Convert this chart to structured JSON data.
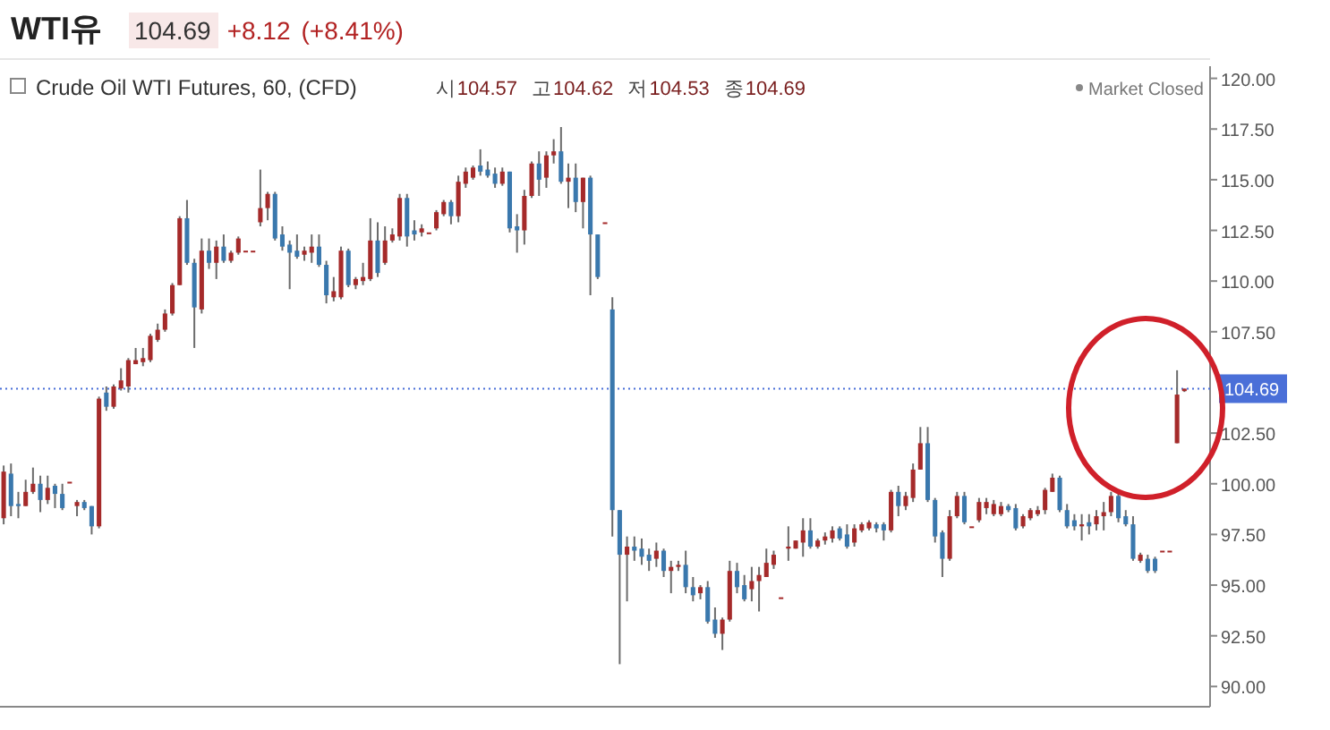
{
  "chart_data": {
    "type": "candlestick",
    "title": "WTI유",
    "subtitle": "Crude Oil WTI Futures, 60, (CFD)",
    "annotations": [
      "104.69",
      "+8.12",
      "(+8.41%)",
      "시",
      "104.57",
      "고",
      "104.62",
      "저",
      "104.53",
      "종",
      "104.69",
      "Market Closed"
    ],
    "ylim": [
      89,
      120.6
    ],
    "yticks": [
      {
        "value": 90,
        "label": "90.00"
      },
      {
        "value": 92.5,
        "label": "92.50"
      },
      {
        "value": 95,
        "label": "95.00"
      },
      {
        "value": 97.5,
        "label": "97.50"
      },
      {
        "value": 100,
        "label": "100.00"
      },
      {
        "value": 102.5,
        "label": "102.50"
      },
      {
        "value": 107.5,
        "label": "107.50"
      },
      {
        "value": 110,
        "label": "110.00"
      },
      {
        "value": 112.5,
        "label": "112.50"
      },
      {
        "value": 115,
        "label": "115.00"
      },
      {
        "value": 117.5,
        "label": "117.50"
      },
      {
        "value": 120,
        "label": "120.00"
      }
    ],
    "tick_labels": "y",
    "ref_lines": [
      {
        "axis": "y",
        "value": 104.69,
        "label": "104.69",
        "color": "#4a6fd8",
        "line_style": "dotted"
      }
    ],
    "ohlc": [
      [
        98.3,
        100.9,
        98.0,
        100.6
      ],
      [
        100.5,
        101.0,
        98.4,
        98.9
      ],
      [
        99.0,
        99.6,
        98.3,
        98.9
      ],
      [
        98.9,
        100.2,
        98.9,
        99.6
      ],
      [
        99.6,
        100.8,
        99.5,
        100.0
      ],
      [
        100.0,
        100.4,
        98.6,
        99.2
      ],
      [
        99.2,
        100.4,
        99.0,
        99.8
      ],
      [
        99.9,
        100.0,
        98.8,
        99.5
      ],
      [
        99.5,
        100.0,
        98.7,
        98.8
      ],
      [
        100.1,
        100.1,
        100.1,
        100.1
      ],
      [
        98.9,
        99.2,
        98.4,
        99.1
      ],
      [
        99.1,
        99.2,
        98.7,
        98.8
      ],
      [
        98.9,
        98.9,
        97.5,
        97.9
      ],
      [
        97.9,
        104.3,
        97.8,
        104.2
      ],
      [
        104.5,
        104.8,
        103.6,
        103.8
      ],
      [
        103.8,
        104.9,
        103.7,
        104.8
      ],
      [
        104.7,
        105.7,
        104.6,
        105.1
      ],
      [
        104.8,
        106.2,
        104.5,
        106.1
      ],
      [
        105.9,
        106.7,
        105.9,
        106.1
      ],
      [
        106.0,
        106.7,
        105.8,
        106.2
      ],
      [
        106.1,
        107.4,
        106.0,
        107.3
      ],
      [
        107.1,
        107.9,
        107.0,
        107.6
      ],
      [
        107.6,
        108.6,
        107.5,
        108.4
      ],
      [
        108.4,
        109.9,
        108.3,
        109.8
      ],
      [
        109.8,
        113.2,
        109.8,
        113.1
      ],
      [
        113.1,
        114.0,
        110.8,
        110.9
      ],
      [
        110.9,
        111.1,
        106.7,
        108.7
      ],
      [
        108.6,
        112.1,
        108.4,
        111.5
      ],
      [
        111.5,
        112.1,
        110.6,
        110.9
      ],
      [
        110.9,
        112.0,
        110.1,
        111.7
      ],
      [
        111.7,
        112.3,
        110.9,
        111.0
      ],
      [
        111.0,
        111.5,
        110.9,
        111.4
      ],
      [
        111.4,
        112.2,
        111.3,
        112.1
      ],
      [
        111.5,
        111.5,
        111.5,
        111.5
      ],
      [
        111.5,
        111.5,
        111.5,
        111.5
      ],
      [
        112.9,
        115.5,
        112.7,
        113.6
      ],
      [
        113.6,
        114.4,
        113.0,
        114.3
      ],
      [
        114.3,
        114.4,
        112.0,
        112.1
      ],
      [
        112.3,
        112.7,
        111.5,
        111.7
      ],
      [
        111.8,
        112.0,
        109.6,
        111.4
      ],
      [
        111.5,
        112.3,
        111.1,
        111.2
      ],
      [
        111.3,
        111.7,
        111.0,
        111.5
      ],
      [
        111.4,
        112.3,
        110.9,
        111.7
      ],
      [
        111.7,
        112.3,
        110.7,
        110.8
      ],
      [
        110.8,
        111.0,
        108.9,
        109.3
      ],
      [
        109.2,
        110.2,
        109.0,
        109.5
      ],
      [
        109.2,
        111.7,
        109.1,
        111.5
      ],
      [
        111.5,
        111.6,
        109.7,
        109.8
      ],
      [
        109.8,
        110.2,
        109.6,
        110.1
      ],
      [
        110.0,
        110.9,
        109.8,
        110.2
      ],
      [
        110.1,
        113.1,
        110.0,
        112.0
      ],
      [
        112.0,
        112.9,
        110.2,
        110.4
      ],
      [
        110.9,
        112.7,
        110.8,
        112.0
      ],
      [
        112.0,
        112.6,
        111.9,
        112.3
      ],
      [
        112.2,
        114.3,
        112.0,
        114.1
      ],
      [
        114.1,
        114.3,
        111.7,
        112.2
      ],
      [
        112.5,
        113.0,
        112.0,
        112.3
      ],
      [
        112.4,
        112.8,
        112.2,
        112.6
      ],
      [
        112.4,
        112.4,
        112.4,
        112.4
      ],
      [
        112.6,
        113.5,
        112.5,
        113.4
      ],
      [
        113.3,
        114.0,
        113.2,
        113.9
      ],
      [
        113.9,
        114.0,
        112.8,
        113.2
      ],
      [
        113.2,
        115.2,
        112.9,
        114.9
      ],
      [
        114.8,
        115.6,
        114.6,
        115.4
      ],
      [
        115.1,
        115.7,
        115.0,
        115.6
      ],
      [
        115.7,
        116.5,
        115.2,
        115.4
      ],
      [
        115.5,
        115.9,
        115.1,
        115.2
      ],
      [
        115.3,
        115.6,
        114.6,
        114.8
      ],
      [
        114.8,
        115.6,
        114.7,
        115.4
      ],
      [
        115.4,
        115.4,
        112.4,
        112.6
      ],
      [
        112.7,
        113.3,
        111.4,
        112.5
      ],
      [
        112.5,
        114.5,
        111.8,
        114.2
      ],
      [
        114.2,
        115.9,
        114.1,
        115.8
      ],
      [
        115.8,
        116.4,
        114.2,
        115.0
      ],
      [
        115.1,
        116.4,
        114.6,
        116.2
      ],
      [
        116.2,
        117.0,
        115.8,
        116.4
      ],
      [
        116.4,
        117.6,
        114.8,
        114.9
      ],
      [
        114.9,
        115.8,
        113.6,
        115.1
      ],
      [
        115.1,
        115.8,
        113.4,
        113.9
      ],
      [
        113.9,
        115.1,
        112.6,
        115.1
      ],
      [
        115.1,
        115.2,
        109.3,
        112.3
      ],
      [
        112.3,
        112.3,
        110.1,
        110.2
      ],
      [
        112.9,
        112.9,
        112.9,
        112.9
      ],
      [
        108.6,
        109.2,
        97.4,
        98.7
      ],
      [
        98.7,
        98.7,
        91.1,
        96.5
      ],
      [
        96.5,
        97.4,
        94.2,
        96.9
      ],
      [
        96.9,
        97.4,
        96.2,
        96.7
      ],
      [
        96.8,
        97.3,
        96.0,
        96.4
      ],
      [
        96.5,
        96.8,
        95.7,
        96.2
      ],
      [
        96.3,
        97.1,
        95.9,
        96.7
      ],
      [
        96.7,
        96.8,
        95.4,
        95.7
      ],
      [
        95.7,
        96.2,
        94.6,
        95.9
      ],
      [
        95.9,
        96.2,
        95.7,
        96.0
      ],
      [
        96.0,
        96.7,
        94.6,
        94.9
      ],
      [
        94.9,
        95.4,
        94.2,
        94.5
      ],
      [
        94.6,
        95.0,
        94.3,
        94.9
      ],
      [
        94.9,
        95.2,
        93.1,
        93.2
      ],
      [
        93.3,
        93.9,
        92.4,
        92.6
      ],
      [
        92.6,
        93.4,
        91.8,
        93.3
      ],
      [
        93.3,
        96.2,
        93.2,
        95.7
      ],
      [
        95.7,
        96.1,
        94.6,
        94.9
      ],
      [
        95.0,
        95.5,
        94.2,
        94.3
      ],
      [
        94.8,
        95.9,
        94.2,
        95.2
      ],
      [
        95.2,
        95.9,
        93.7,
        95.5
      ],
      [
        95.4,
        96.8,
        95.4,
        96.1
      ],
      [
        96.0,
        96.7,
        95.8,
        96.5
      ],
      [
        94.4,
        94.4,
        94.4,
        94.4
      ],
      [
        96.8,
        97.9,
        96.2,
        96.9
      ],
      [
        96.8,
        97.2,
        96.8,
        97.2
      ],
      [
        97.1,
        98.3,
        96.4,
        97.7
      ],
      [
        97.7,
        98.3,
        96.8,
        96.9
      ],
      [
        96.9,
        97.3,
        96.8,
        97.2
      ],
      [
        97.2,
        97.6,
        97.0,
        97.4
      ],
      [
        97.3,
        97.9,
        97.1,
        97.7
      ],
      [
        97.8,
        97.9,
        97.2,
        97.3
      ],
      [
        97.5,
        98.0,
        96.8,
        96.9
      ],
      [
        97.1,
        98.0,
        96.9,
        97.8
      ],
      [
        97.7,
        98.1,
        97.6,
        98.0
      ],
      [
        97.8,
        98.2,
        97.7,
        98.1
      ],
      [
        98.0,
        98.1,
        97.6,
        97.8
      ],
      [
        98.0,
        98.1,
        97.2,
        97.7
      ],
      [
        97.7,
        99.7,
        97.6,
        99.6
      ],
      [
        99.6,
        99.9,
        98.4,
        98.9
      ],
      [
        98.9,
        99.6,
        98.7,
        99.4
      ],
      [
        99.3,
        101.0,
        99.1,
        100.7
      ],
      [
        100.7,
        102.8,
        100.7,
        102.0
      ],
      [
        102.0,
        102.8,
        99.1,
        99.2
      ],
      [
        99.2,
        99.3,
        97.1,
        97.4
      ],
      [
        97.6,
        97.7,
        95.4,
        96.3
      ],
      [
        96.3,
        98.7,
        96.2,
        98.4
      ],
      [
        98.4,
        99.6,
        98.3,
        99.4
      ],
      [
        99.4,
        99.6,
        98.0,
        98.1
      ],
      [
        97.9,
        97.9,
        97.9,
        97.9
      ],
      [
        98.2,
        99.3,
        98.1,
        99.1
      ],
      [
        98.8,
        99.3,
        98.5,
        99.1
      ],
      [
        98.5,
        99.2,
        98.4,
        99.0
      ],
      [
        98.5,
        99.1,
        98.4,
        98.9
      ],
      [
        98.9,
        99.0,
        98.6,
        98.7
      ],
      [
        98.8,
        99.0,
        97.7,
        97.8
      ],
      [
        97.9,
        98.5,
        97.8,
        98.4
      ],
      [
        98.3,
        98.8,
        98.2,
        98.7
      ],
      [
        98.5,
        98.9,
        98.4,
        98.7
      ],
      [
        98.7,
        99.8,
        98.5,
        99.7
      ],
      [
        99.6,
        100.5,
        99.6,
        100.3
      ],
      [
        100.3,
        100.4,
        98.6,
        98.7
      ],
      [
        98.7,
        99.0,
        97.8,
        97.9
      ],
      [
        98.2,
        98.5,
        97.7,
        97.9
      ],
      [
        97.9,
        98.5,
        97.2,
        98.0
      ],
      [
        98.1,
        98.5,
        97.5,
        97.9
      ],
      [
        98.0,
        98.7,
        97.7,
        98.4
      ],
      [
        98.4,
        99.1,
        97.7,
        98.6
      ],
      [
        98.6,
        99.6,
        98.4,
        99.4
      ],
      [
        99.4,
        99.6,
        98.1,
        98.3
      ],
      [
        98.4,
        98.7,
        97.9,
        98.0
      ],
      [
        98.0,
        98.4,
        96.2,
        96.3
      ],
      [
        96.2,
        96.6,
        96.1,
        96.5
      ],
      [
        96.3,
        96.5,
        95.6,
        95.7
      ],
      [
        96.3,
        96.4,
        95.6,
        95.7
      ],
      [
        96.7,
        96.7,
        96.7,
        96.7
      ],
      [
        96.7,
        96.7,
        96.7,
        96.7
      ],
      [
        102.0,
        105.6,
        102.0,
        104.4
      ],
      [
        104.57,
        104.69,
        104.53,
        104.69
      ]
    ],
    "grid": false
  }
}
